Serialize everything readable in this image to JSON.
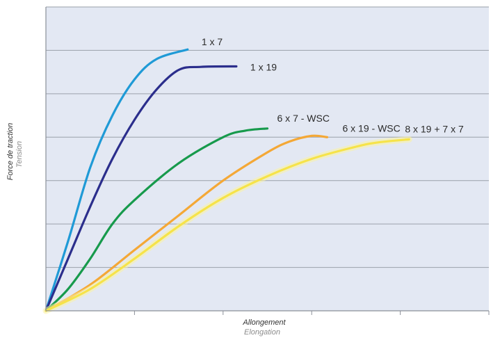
{
  "chart_data": {
    "type": "line",
    "title": "",
    "xlabel": "Allongement",
    "xlabel_secondary": "Elongation",
    "ylabel": "Force de traction",
    "ylabel_secondary": "Tension",
    "xlim": [
      0,
      10
    ],
    "ylim": [
      0,
      7
    ],
    "grid": true,
    "legend": "inline labels at line ends",
    "colors": {
      "background": "#e3e8f3",
      "grid": "#9aa0aa",
      "axis": "#8a8f98",
      "xlabel": "#333333",
      "xlabel_secondary": "#8c8c8c"
    },
    "series": [
      {
        "name": "1 x 7",
        "color": "#1f9ad6",
        "points": [
          [
            0,
            0
          ],
          [
            0.5,
            1.6
          ],
          [
            1,
            3.3
          ],
          [
            1.5,
            4.5
          ],
          [
            2,
            5.33
          ],
          [
            2.5,
            5.8
          ],
          [
            3.2,
            6.02
          ]
        ]
      },
      {
        "name": "1 x 19",
        "color": "#2b2e8c",
        "points": [
          [
            0,
            0
          ],
          [
            0.5,
            1.2
          ],
          [
            1,
            2.4
          ],
          [
            1.5,
            3.5
          ],
          [
            2,
            4.4
          ],
          [
            2.5,
            5.1
          ],
          [
            3,
            5.55
          ],
          [
            3.5,
            5.62
          ],
          [
            4.3,
            5.63
          ]
        ]
      },
      {
        "name": "6 x 7 - WSC",
        "color": "#179a4c",
        "points": [
          [
            0,
            0
          ],
          [
            0.5,
            0.5
          ],
          [
            1,
            1.2
          ],
          [
            1.5,
            2.0
          ],
          [
            2,
            2.55
          ],
          [
            3,
            3.4
          ],
          [
            4,
            4.0
          ],
          [
            4.5,
            4.15
          ],
          [
            5,
            4.2
          ],
          [
            4.9,
            4.24
          ],
          [
            5.0,
            4.25
          ],
          [
            4.95,
            4.25
          ]
        ]
      },
      {
        "name": "6 x 19 - WSC",
        "color": "#f4a836",
        "points": [
          [
            0,
            0
          ],
          [
            1,
            0.6
          ],
          [
            2,
            1.4
          ],
          [
            3,
            2.2
          ],
          [
            4,
            3.0
          ],
          [
            5,
            3.65
          ],
          [
            5.5,
            3.9
          ],
          [
            6,
            4.03
          ],
          [
            6.35,
            4.0
          ],
          [
            6.3,
            4.02
          ]
        ]
      },
      {
        "name": "8 x 19 + 7 x 7",
        "color": "#f6e34a",
        "points": [
          [
            0,
            0
          ],
          [
            1,
            0.5
          ],
          [
            2,
            1.2
          ],
          [
            3,
            1.95
          ],
          [
            4,
            2.6
          ],
          [
            5,
            3.1
          ],
          [
            6,
            3.5
          ],
          [
            7,
            3.78
          ],
          [
            7.5,
            3.88
          ],
          [
            8.2,
            3.95
          ]
        ]
      }
    ]
  }
}
